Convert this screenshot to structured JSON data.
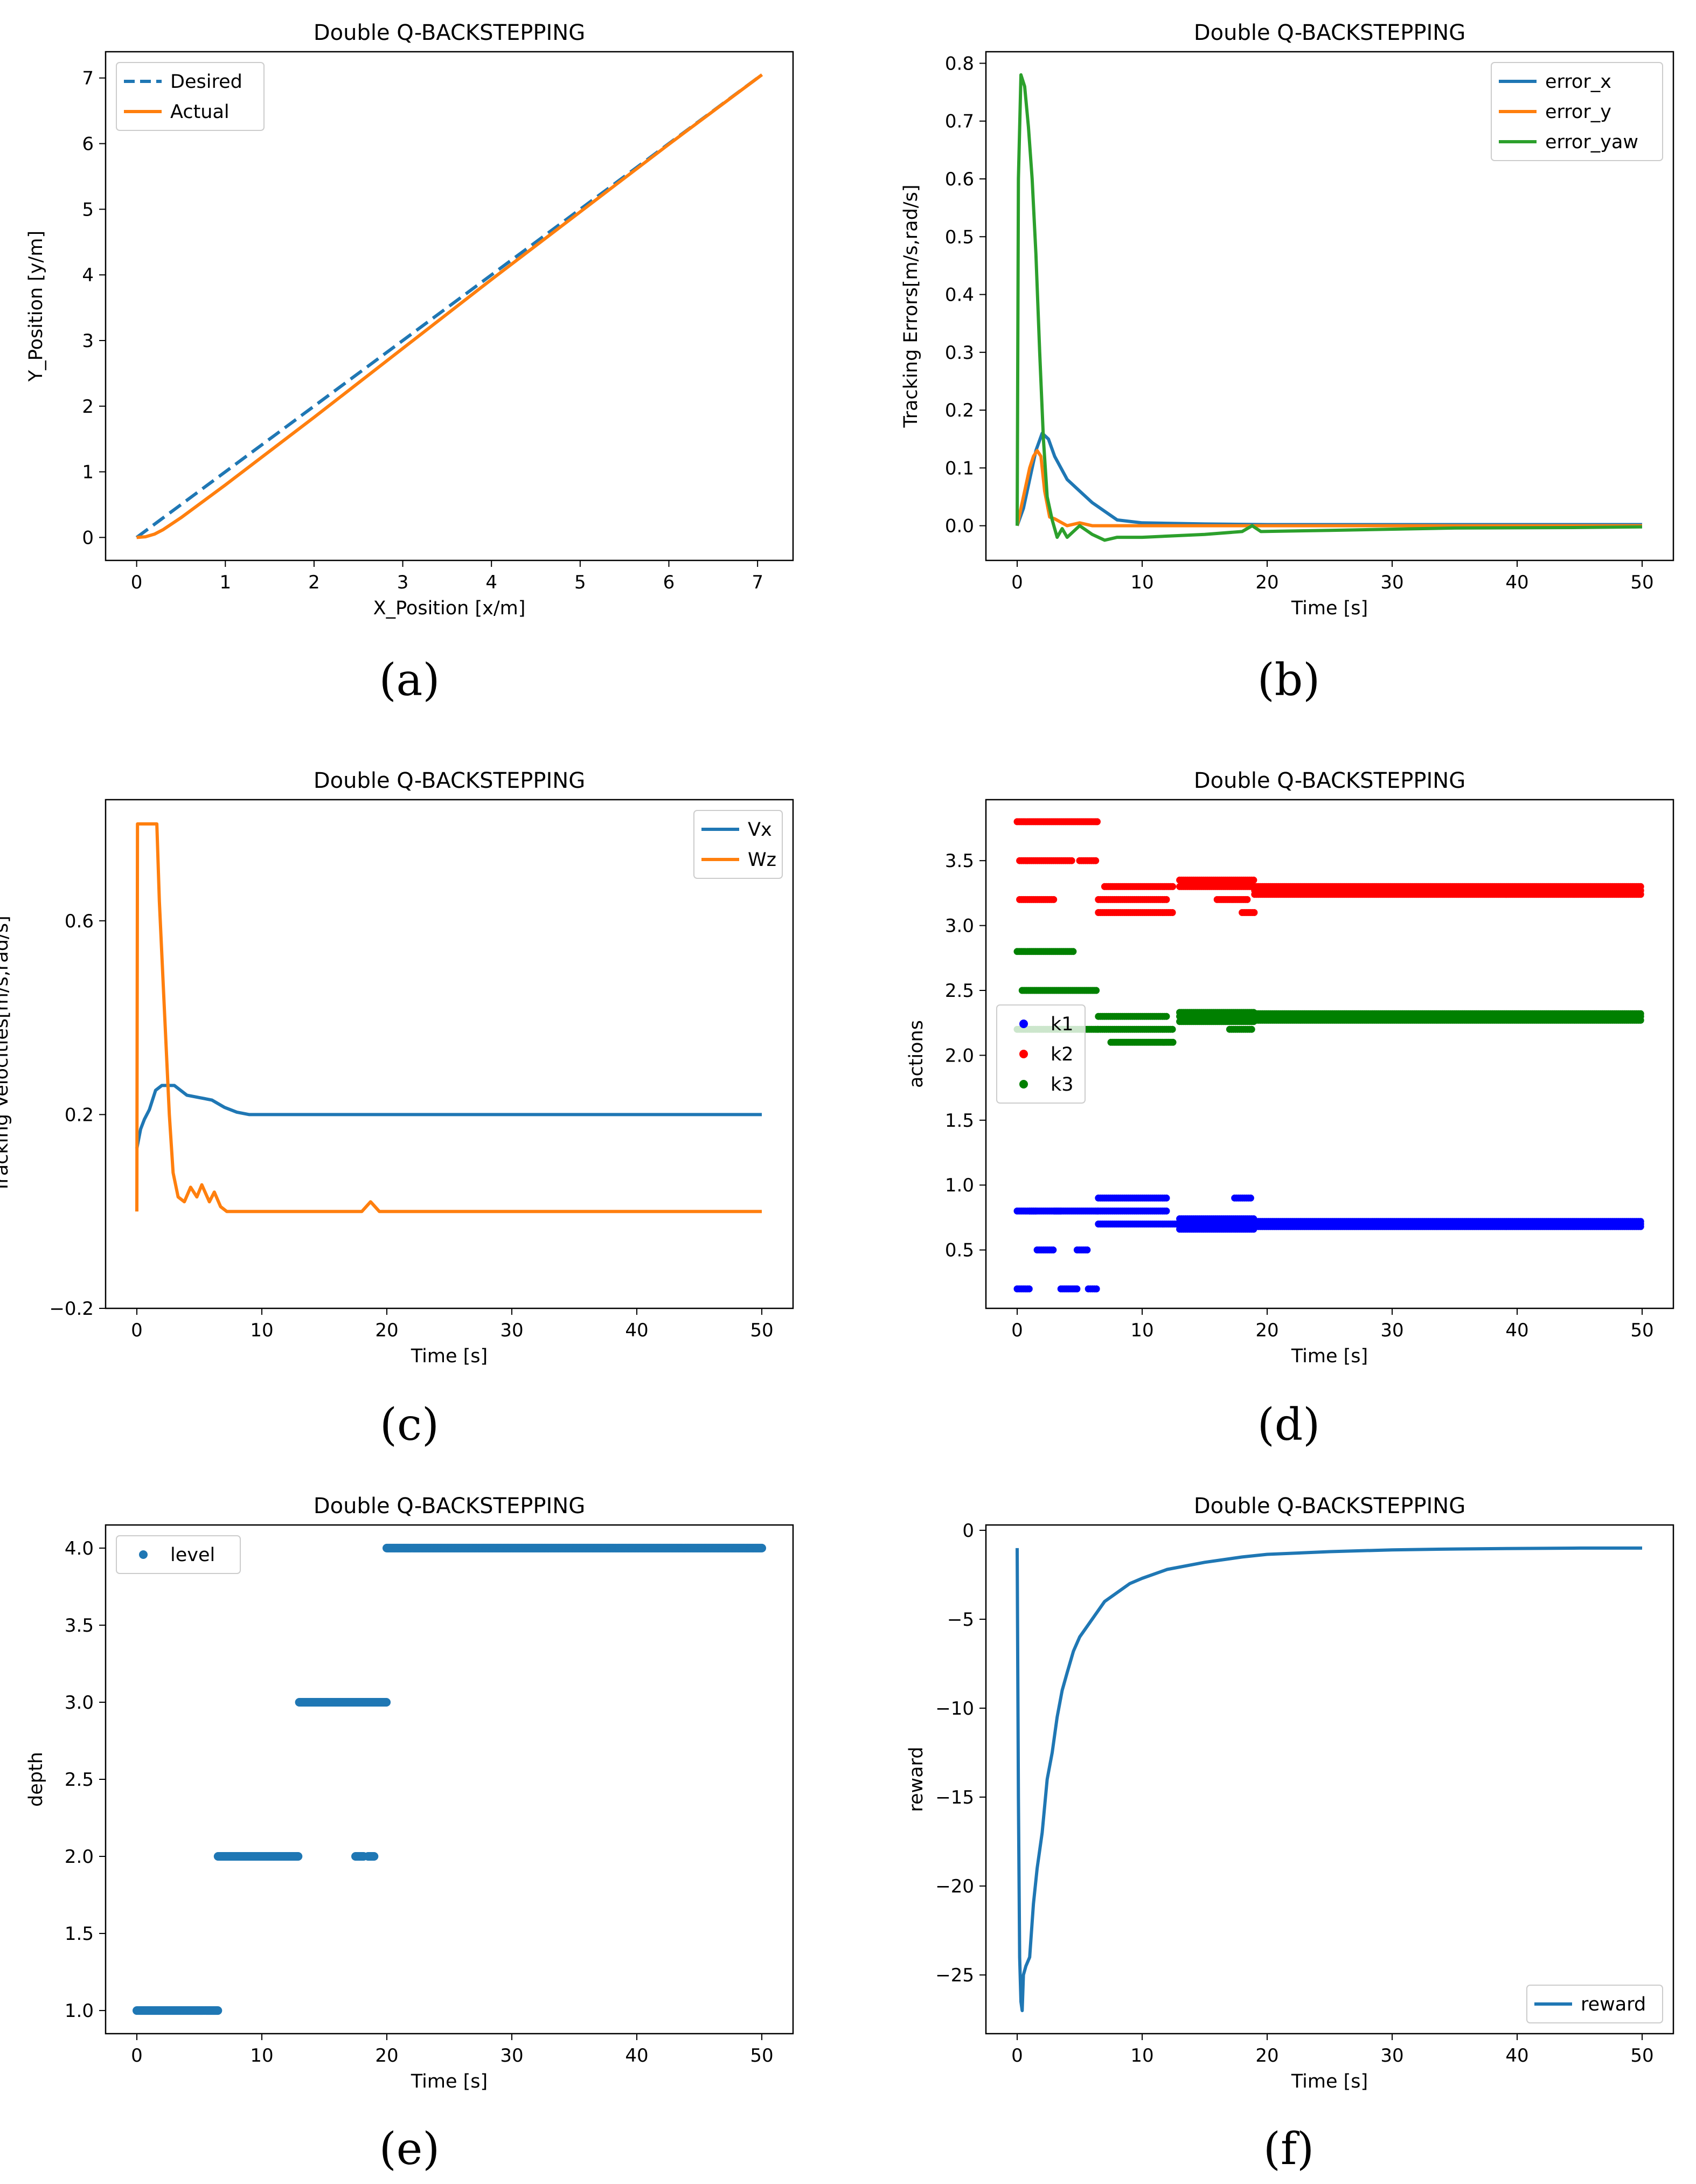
{
  "colors": {
    "blue": "#1f77b4",
    "orange": "#ff7f0e",
    "green": "#2ca02c",
    "k1": "#0000ff",
    "k2": "#ff0000",
    "k3": "#008000"
  },
  "chart_data": [
    {
      "id": "a",
      "type": "line",
      "title": "Double Q-BACKSTEPPING",
      "caption": "(a)",
      "xlabel": "X_Position [x/m]",
      "ylabel": "Y_Position [y/m]",
      "xlim": [
        -0.35,
        7.4
      ],
      "ylim": [
        -0.35,
        7.4
      ],
      "xticks": [
        0,
        1,
        2,
        3,
        4,
        5,
        6,
        7
      ],
      "yticks": [
        0,
        1,
        2,
        3,
        4,
        5,
        6,
        7
      ],
      "legend_position": "upper-left",
      "series": [
        {
          "name": "Desired",
          "style": "dashed",
          "color": "blue",
          "x": [
            0,
            7.05
          ],
          "y": [
            0,
            7.05
          ]
        },
        {
          "name": "Actual",
          "style": "solid",
          "color": "orange",
          "x": [
            0,
            0.1,
            0.2,
            0.3,
            0.5,
            1.0,
            2.0,
            4.0,
            6.0,
            7.05
          ],
          "y": [
            0,
            0.01,
            0.05,
            0.12,
            0.3,
            0.8,
            1.83,
            3.93,
            5.99,
            7.05
          ]
        }
      ]
    },
    {
      "id": "b",
      "type": "line",
      "title": "Double Q-BACKSTEPPING",
      "caption": "(b)",
      "xlabel": "Time [s]",
      "ylabel": "Tracking Errors[m/s,rad/s]",
      "xlim": [
        -2.5,
        52.5
      ],
      "ylim": [
        -0.06,
        0.82
      ],
      "xticks": [
        0,
        10,
        20,
        30,
        40,
        50
      ],
      "yticks": [
        0.0,
        0.1,
        0.2,
        0.3,
        0.4,
        0.5,
        0.6,
        0.7,
        0.8
      ],
      "ytick_labels": [
        "0.0",
        "0.1",
        "0.2",
        "0.3",
        "0.4",
        "0.5",
        "0.6",
        "0.7",
        "0.8"
      ],
      "legend_position": "upper-right",
      "series": [
        {
          "name": "error_x",
          "color": "blue",
          "x": [
            0,
            0.5,
            1.0,
            1.5,
            2.0,
            2.5,
            3.0,
            4.0,
            5.0,
            6.0,
            7.0,
            8.0,
            10.0,
            15.0,
            20.0,
            30.0,
            40.0,
            50.0
          ],
          "y": [
            0,
            0.03,
            0.08,
            0.13,
            0.16,
            0.15,
            0.12,
            0.08,
            0.06,
            0.04,
            0.025,
            0.01,
            0.005,
            0.003,
            0.002,
            0.002,
            0.002,
            0.002
          ]
        },
        {
          "name": "error_y",
          "color": "orange",
          "x": [
            0,
            0.5,
            1.0,
            1.3,
            1.6,
            1.9,
            2.2,
            2.6,
            3.0,
            4.0,
            5.0,
            6.0,
            8.0,
            12.0,
            20.0,
            30.0,
            40.0,
            50.0
          ],
          "y": [
            0,
            0.05,
            0.1,
            0.12,
            0.13,
            0.12,
            0.06,
            0.015,
            0.012,
            0.0,
            0.005,
            0.0,
            0.0,
            0.0,
            0.0,
            0.0,
            0.0,
            0.0
          ]
        },
        {
          "name": "error_yaw",
          "color": "green",
          "x": [
            0,
            0.1,
            0.3,
            0.6,
            0.9,
            1.2,
            1.5,
            1.8,
            2.1,
            2.4,
            2.8,
            3.2,
            3.6,
            4.0,
            5.0,
            6.0,
            7.0,
            8.0,
            10.0,
            15.0,
            18.0,
            18.8,
            19.5,
            25.0,
            35.0,
            45.0,
            50.0
          ],
          "y": [
            0,
            0.6,
            0.78,
            0.76,
            0.69,
            0.6,
            0.47,
            0.3,
            0.15,
            0.05,
            0.01,
            -0.02,
            -0.005,
            -0.02,
            0.0,
            -0.015,
            -0.025,
            -0.02,
            -0.02,
            -0.015,
            -0.01,
            0.0,
            -0.01,
            -0.008,
            -0.004,
            -0.003,
            -0.002
          ]
        }
      ]
    },
    {
      "id": "c",
      "type": "line",
      "title": "Double Q-BACKSTEPPING",
      "caption": "(c)",
      "xlabel": "Time [s]",
      "ylabel": "Tracking Velocities[m/s,rad/s]",
      "xlim": [
        -2.5,
        52.5
      ],
      "ylim": [
        -0.2,
        0.85
      ],
      "xticks": [
        0,
        10,
        20,
        30,
        40,
        50
      ],
      "yticks": [
        -0.2,
        0.2,
        0.6
      ],
      "ytick_labels": [
        "−0.2",
        "0.2",
        "0.6"
      ],
      "legend_position": "upper-right",
      "series": [
        {
          "name": "Vx",
          "color": "blue",
          "x": [
            0,
            0.3,
            0.6,
            1.0,
            1.5,
            2.0,
            2.5,
            3.0,
            3.5,
            4.0,
            5.0,
            6.0,
            7.0,
            8.0,
            9.0,
            10.0,
            15.0,
            20.0,
            30.0,
            40.0,
            50.0
          ],
          "y": [
            0.13,
            0.17,
            0.19,
            0.21,
            0.25,
            0.26,
            0.26,
            0.26,
            0.25,
            0.24,
            0.235,
            0.23,
            0.215,
            0.205,
            0.2,
            0.2,
            0.2,
            0.2,
            0.2,
            0.2,
            0.2
          ]
        },
        {
          "name": "Wz",
          "color": "orange",
          "x": [
            0,
            0.05,
            0.2,
            1.0,
            1.6,
            1.8,
            2.2,
            2.6,
            2.9,
            3.3,
            3.8,
            4.3,
            4.8,
            5.2,
            5.8,
            6.2,
            6.7,
            7.2,
            8.0,
            10.0,
            18.0,
            18.7,
            19.4,
            22.0,
            30.0,
            40.0,
            50.0
          ],
          "y": [
            0.0,
            0.8,
            0.8,
            0.8,
            0.8,
            0.64,
            0.42,
            0.2,
            0.08,
            0.03,
            0.02,
            0.05,
            0.03,
            0.055,
            0.02,
            0.04,
            0.01,
            0.0,
            0.0,
            0.0,
            0.0,
            0.02,
            0.0,
            0.0,
            0.0,
            0.0,
            0.0
          ]
        }
      ]
    },
    {
      "id": "d",
      "type": "scatter",
      "title": "Double Q-BACKSTEPPING",
      "caption": "(d)",
      "xlabel": "Time [s]",
      "ylabel": "actions",
      "xlim": [
        -2.5,
        52.5
      ],
      "ylim": [
        0.05,
        3.97
      ],
      "xticks": [
        0,
        10,
        20,
        30,
        40,
        50
      ],
      "yticks": [
        0.5,
        1.0,
        1.5,
        2.0,
        2.5,
        3.0,
        3.5
      ],
      "ytick_labels": [
        "0.5",
        "1.0",
        "1.5",
        "2.0",
        "2.5",
        "3.0",
        "3.5"
      ],
      "legend_position": "center-left",
      "series": [
        {
          "name": "k1",
          "color": "k1",
          "segments": [
            {
              "x0": 0,
              "x1": 1.0,
              "y": 0.2
            },
            {
              "x0": 1.0,
              "x1": 1.6,
              "y": 0.8
            },
            {
              "x0": 1.6,
              "x1": 3.0,
              "y": 0.5
            },
            {
              "x0": 3.0,
              "x1": 3.5,
              "y": 0.8
            },
            {
              "x0": 3.5,
              "x1": 4.8,
              "y": 0.2
            },
            {
              "x0": 4.8,
              "x1": 5.7,
              "y": 0.5
            },
            {
              "x0": 5.7,
              "x1": 6.4,
              "y": 0.2
            },
            {
              "x0": 0.0,
              "x1": 6.5,
              "y": 0.8
            },
            {
              "x0": 6.5,
              "x1": 12.0,
              "y": 0.8
            },
            {
              "x0": 6.5,
              "x1": 12.0,
              "y": 0.9
            },
            {
              "x0": 6.5,
              "x1": 13.0,
              "y": 0.7
            },
            {
              "x0": 13.0,
              "x1": 19.0,
              "y": 0.7
            },
            {
              "x0": 13.0,
              "x1": 19.0,
              "y": 0.66
            },
            {
              "x0": 13.0,
              "x1": 19.0,
              "y": 0.74
            },
            {
              "x0": 17.4,
              "x1": 18.8,
              "y": 0.9
            },
            {
              "x0": 19.0,
              "x1": 50.0,
              "y": 0.7
            },
            {
              "x0": 19.0,
              "x1": 50.0,
              "y": 0.68
            },
            {
              "x0": 19.0,
              "x1": 50.0,
              "y": 0.72
            }
          ]
        },
        {
          "name": "k2",
          "color": "k2",
          "segments": [
            {
              "x0": 0,
              "x1": 6.4,
              "y": 3.8
            },
            {
              "x0": 0.2,
              "x1": 4.5,
              "y": 3.5
            },
            {
              "x0": 5.0,
              "x1": 6.4,
              "y": 3.5
            },
            {
              "x0": 0.2,
              "x1": 3.0,
              "y": 3.2
            },
            {
              "x0": 6.5,
              "x1": 12.0,
              "y": 3.2
            },
            {
              "x0": 6.5,
              "x1": 12.5,
              "y": 3.1
            },
            {
              "x0": 7.0,
              "x1": 12.5,
              "y": 3.3
            },
            {
              "x0": 13.0,
              "x1": 19.0,
              "y": 3.35
            },
            {
              "x0": 13.0,
              "x1": 19.0,
              "y": 3.3
            },
            {
              "x0": 16.0,
              "x1": 18.5,
              "y": 3.2
            },
            {
              "x0": 18.0,
              "x1": 19.0,
              "y": 3.1
            },
            {
              "x0": 19.0,
              "x1": 50.0,
              "y": 3.27
            },
            {
              "x0": 19.0,
              "x1": 50.0,
              "y": 3.3
            },
            {
              "x0": 19.0,
              "x1": 50.0,
              "y": 3.24
            }
          ]
        },
        {
          "name": "k3",
          "color": "k3",
          "segments": [
            {
              "x0": 0,
              "x1": 4.5,
              "y": 2.8
            },
            {
              "x0": 0.4,
              "x1": 6.4,
              "y": 2.5
            },
            {
              "x0": 0,
              "x1": 6.4,
              "y": 2.2
            },
            {
              "x0": 6.5,
              "x1": 12.0,
              "y": 2.3
            },
            {
              "x0": 6.5,
              "x1": 12.5,
              "y": 2.2
            },
            {
              "x0": 7.5,
              "x1": 12.5,
              "y": 2.1
            },
            {
              "x0": 13.0,
              "x1": 19.0,
              "y": 2.3
            },
            {
              "x0": 13.0,
              "x1": 19.0,
              "y": 2.33
            },
            {
              "x0": 13.0,
              "x1": 19.0,
              "y": 2.26
            },
            {
              "x0": 17.0,
              "x1": 18.8,
              "y": 2.2
            },
            {
              "x0": 19.0,
              "x1": 50.0,
              "y": 2.3
            },
            {
              "x0": 19.0,
              "x1": 50.0,
              "y": 2.27
            },
            {
              "x0": 19.0,
              "x1": 50.0,
              "y": 2.32
            }
          ]
        }
      ]
    },
    {
      "id": "e",
      "type": "scatter",
      "title": "Double Q-BACKSTEPPING",
      "caption": "(e)",
      "xlabel": "Time [s]",
      "ylabel": "depth",
      "xlim": [
        -2.5,
        52.5
      ],
      "ylim": [
        0.85,
        4.15
      ],
      "xticks": [
        0,
        10,
        20,
        30,
        40,
        50
      ],
      "yticks": [
        1.0,
        1.5,
        2.0,
        2.5,
        3.0,
        3.5,
        4.0
      ],
      "ytick_labels": [
        "1.0",
        "1.5",
        "2.0",
        "2.5",
        "3.0",
        "3.5",
        "4.0"
      ],
      "legend_position": "upper-left",
      "series": [
        {
          "name": "level",
          "color": "blue",
          "segments": [
            {
              "x0": 0,
              "x1": 6.5,
              "y": 1.0
            },
            {
              "x0": 6.5,
              "x1": 12.9,
              "y": 2.0
            },
            {
              "x0": 17.5,
              "x1": 18.2,
              "y": 2.0
            },
            {
              "x0": 18.5,
              "x1": 19.0,
              "y": 2.0
            },
            {
              "x0": 13.0,
              "x1": 20.0,
              "y": 3.0
            },
            {
              "x0": 20.0,
              "x1": 50.0,
              "y": 4.0
            }
          ]
        }
      ]
    },
    {
      "id": "f",
      "type": "line",
      "title": "Double Q-BACKSTEPPING",
      "caption": "(f)",
      "xlabel": "Time [s]",
      "ylabel": "reward",
      "xlim": [
        -2.5,
        52.5
      ],
      "ylim": [
        -28.3,
        0.3
      ],
      "xticks": [
        0,
        10,
        20,
        30,
        40,
        50
      ],
      "yticks": [
        0,
        -5,
        -10,
        -15,
        -20,
        -25
      ],
      "ytick_labels": [
        "0",
        "−5",
        "−10",
        "−15",
        "−20",
        "−25"
      ],
      "legend_position": "lower-right",
      "series": [
        {
          "name": "reward",
          "color": "blue",
          "x": [
            0,
            0.1,
            0.2,
            0.3,
            0.4,
            0.5,
            0.7,
            1.0,
            1.3,
            1.6,
            2.0,
            2.4,
            2.8,
            3.2,
            3.6,
            4.0,
            4.5,
            5.0,
            5.5,
            6.0,
            6.5,
            7.0,
            8.0,
            9.0,
            10.0,
            12.0,
            15.0,
            18.0,
            20.0,
            25.0,
            30.0,
            35.0,
            40.0,
            45.0,
            50.0
          ],
          "y": [
            -1.0,
            -15.0,
            -24.0,
            -26.5,
            -27.0,
            -25.0,
            -24.5,
            -24.0,
            -21.0,
            -19.0,
            -17.0,
            -14.0,
            -12.5,
            -10.5,
            -9.0,
            -8.0,
            -6.8,
            -6.0,
            -5.5,
            -5.0,
            -4.5,
            -4.0,
            -3.5,
            -3.0,
            -2.7,
            -2.2,
            -1.8,
            -1.5,
            -1.35,
            -1.2,
            -1.1,
            -1.05,
            -1.02,
            -1.0,
            -1.0
          ]
        }
      ]
    }
  ]
}
